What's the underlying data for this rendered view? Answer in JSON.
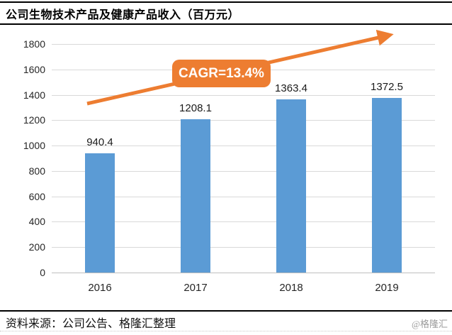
{
  "header": {
    "title": "公司生物技术产品及健康产品收入（百万元）"
  },
  "chart_data": {
    "type": "bar",
    "title": "公司生物技术产品及健康产品收入（百万元）",
    "categories": [
      "2016",
      "2017",
      "2018",
      "2019"
    ],
    "values": [
      940.4,
      1208.1,
      1363.4,
      1372.5
    ],
    "value_labels": [
      "940.4",
      "1208.1",
      "1363.4",
      "1372.5"
    ],
    "xlabel": "",
    "ylabel": "",
    "ylim": [
      0,
      1800
    ],
    "yticks": [
      0,
      200,
      400,
      600,
      800,
      1000,
      1200,
      1400,
      1600,
      1800
    ],
    "grid": "horizontal",
    "legend_position": "none",
    "annotation": "CAGR=13.4%",
    "colors": {
      "bar": "#5B9BD5",
      "accent_orange": "#ED7D31",
      "gridline": "#d9d9d9",
      "axis_line": "#bfbfbf",
      "text": "#262626"
    }
  },
  "annotation": {
    "cagr_label": "CAGR=13.4%"
  },
  "footer": {
    "source": "资料来源：公司公告、格隆汇整理",
    "watermark": "@格隆汇"
  }
}
